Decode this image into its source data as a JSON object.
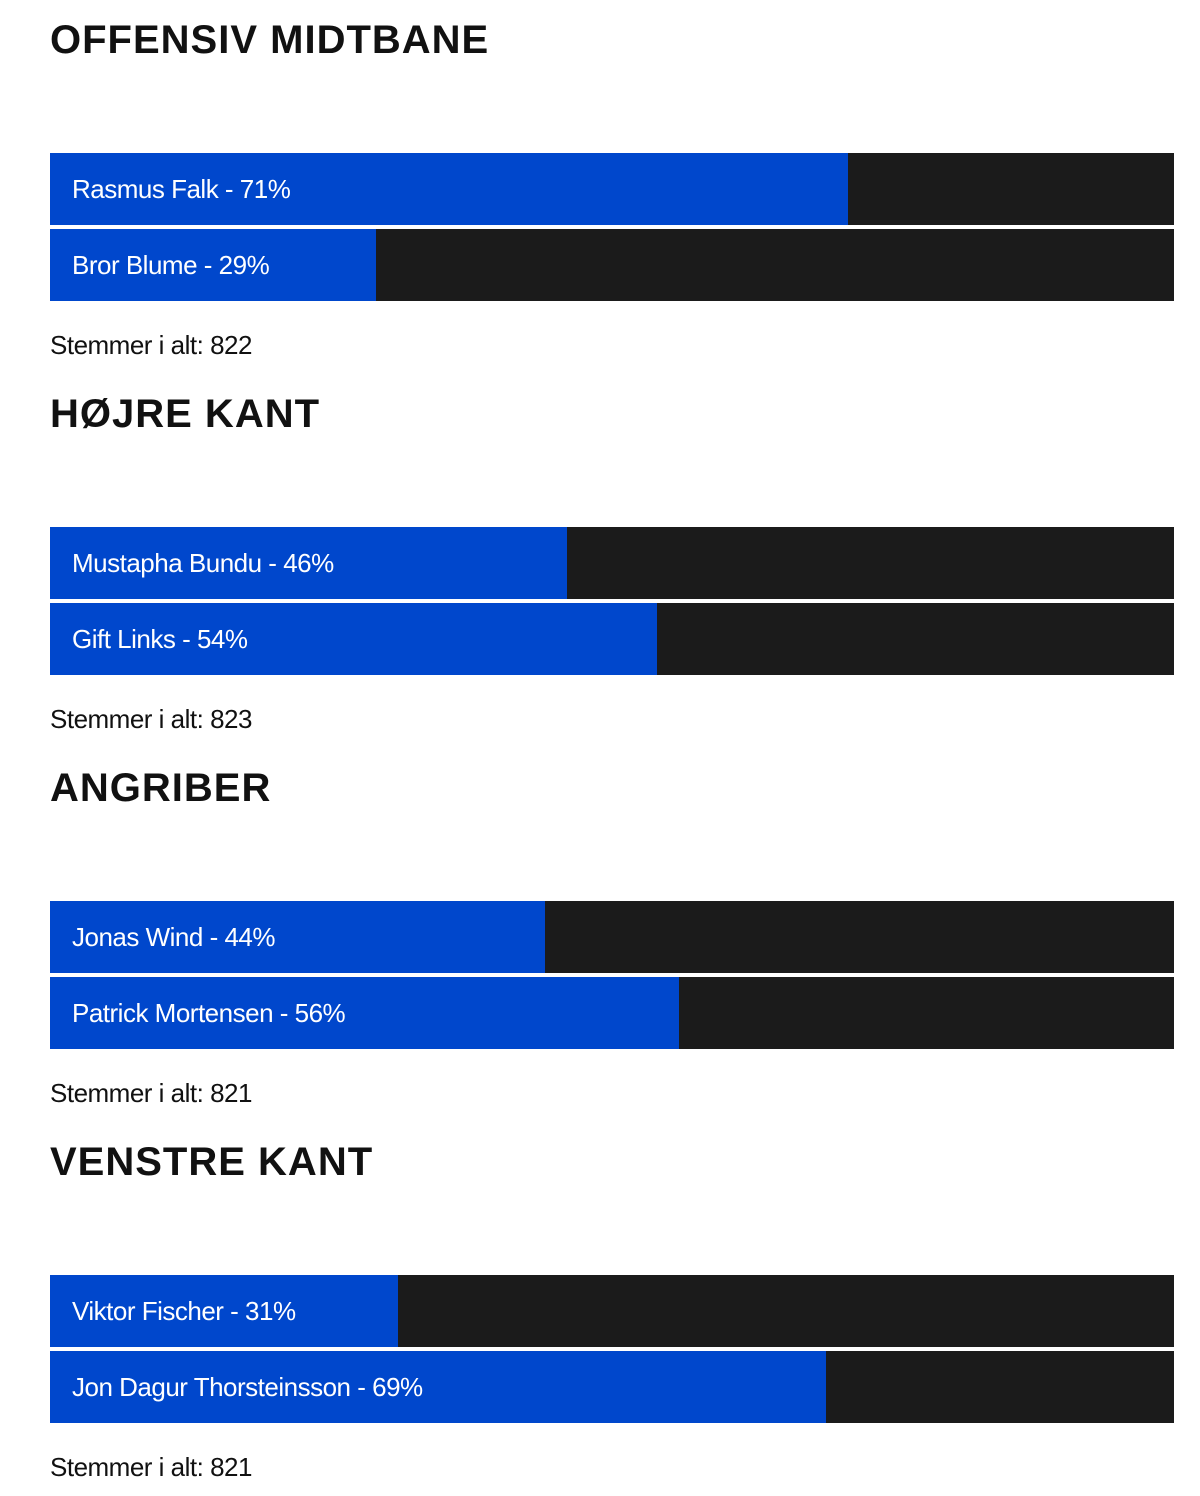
{
  "polls": [
    {
      "title": "OFFENSIV MIDTBANE",
      "options": [
        {
          "label": "Rasmus Falk - 71%",
          "value": 71
        },
        {
          "label": "Bror Blume - 29%",
          "value": 29
        }
      ],
      "total": "Stemmer i alt: 822"
    },
    {
      "title": "HØJRE KANT",
      "options": [
        {
          "label": "Mustapha Bundu - 46%",
          "value": 46
        },
        {
          "label": "Gift Links - 54%",
          "value": 54
        }
      ],
      "total": "Stemmer i alt: 823"
    },
    {
      "title": "ANGRIBER",
      "options": [
        {
          "label": "Jonas Wind - 44%",
          "value": 44
        },
        {
          "label": "Patrick Mortensen - 56%",
          "value": 56
        }
      ],
      "total": "Stemmer i alt: 821"
    },
    {
      "title": "VENSTRE KANT",
      "options": [
        {
          "label": "Viktor Fischer - 31%",
          "value": 31
        },
        {
          "label": "Jon Dagur Thorsteinsson - 69%",
          "value": 69
        }
      ],
      "total": "Stemmer i alt: 821"
    }
  ]
}
